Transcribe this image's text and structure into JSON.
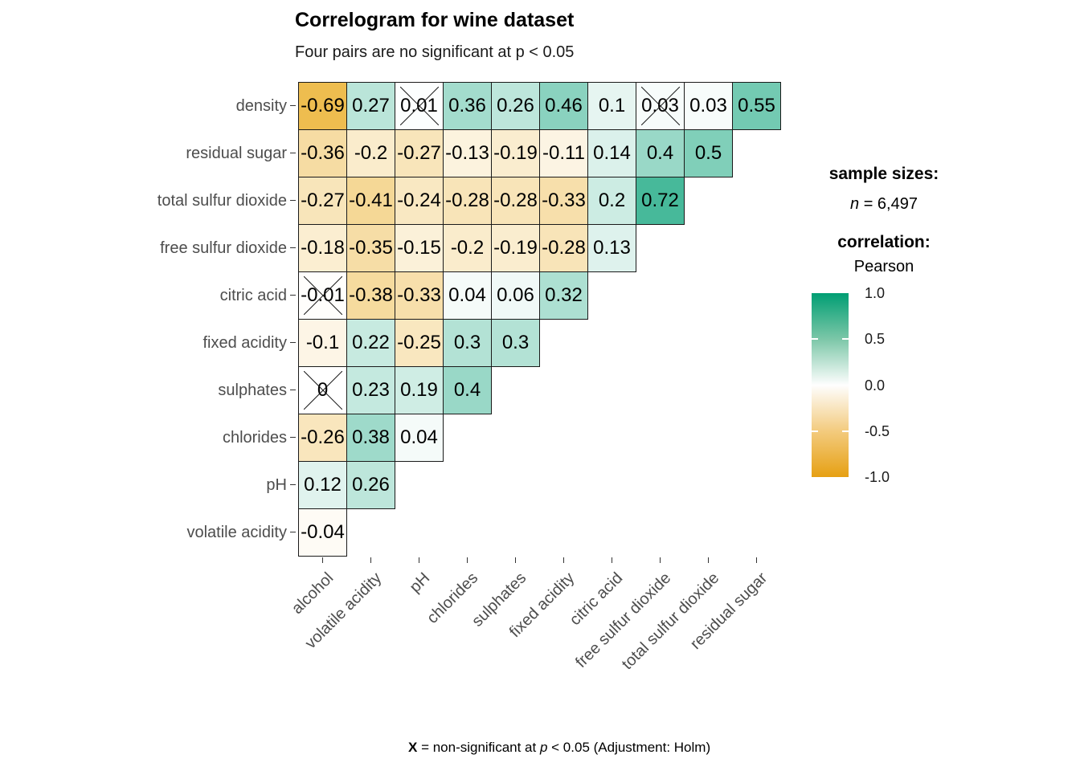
{
  "title": "Correlogram for wine dataset",
  "subtitle": "Four pairs are no significant at p < 0.05",
  "caption": {
    "symbol": "X",
    "middle": " = non-significant at ",
    "p_symbol": "p",
    "end": " < 0.05 (Adjustment: Holm)"
  },
  "legend": {
    "sample_sizes_label": "sample sizes:",
    "n_symbol": "n",
    "n_value": " = 6,497",
    "correlation_label": "correlation:",
    "correlation_method": "Pearson",
    "colorbar": {
      "ticks": [
        "1.0",
        "0.5",
        "0.0",
        "-0.5",
        "-1.0"
      ],
      "positive_color": "#009E73",
      "neutral_color": "#FFFFFF",
      "negative_color": "#E69F00"
    }
  },
  "chart_data": {
    "type": "heatmap",
    "title": "Correlogram for wine dataset",
    "subtitle": "Four pairs are no significant at p < 0.05",
    "caption": "X = non-significant at p < 0.05 (Adjustment: Holm)",
    "correlation_method": "Pearson",
    "sample_size": 6497,
    "colorscale": {
      "min": -1.0,
      "max": 1.0,
      "negative": "#E69F00",
      "neutral": "#FFFFFF",
      "positive": "#009E73"
    },
    "x_categories": [
      "alcohol",
      "volatile acidity",
      "pH",
      "chlorides",
      "sulphates",
      "fixed acidity",
      "citric acid",
      "free sulfur dioxide",
      "total sulfur dioxide",
      "residual sugar"
    ],
    "y_categories": [
      "density",
      "residual sugar",
      "total sulfur dioxide",
      "free sulfur dioxide",
      "citric acid",
      "fixed acidity",
      "sulphates",
      "chlorides",
      "pH",
      "volatile acidity"
    ],
    "rows": [
      {
        "label": "density",
        "values": [
          -0.69,
          0.27,
          0.01,
          0.36,
          0.26,
          0.46,
          0.1,
          0.03,
          0.03,
          0.55
        ],
        "display": [
          "-0.69",
          "0.27",
          "0.01",
          "0.36",
          "0.26",
          "0.46",
          "0.1",
          "0.03",
          "0.03",
          "0.55"
        ],
        "non_significant_cols": [
          2,
          7
        ]
      },
      {
        "label": "residual sugar",
        "values": [
          -0.36,
          -0.2,
          -0.27,
          -0.13,
          -0.19,
          -0.11,
          0.14,
          0.4,
          0.5
        ],
        "display": [
          "-0.36",
          "-0.2",
          "-0.27",
          "-0.13",
          "-0.19",
          "-0.11",
          "0.14",
          "0.4",
          "0.5"
        ],
        "non_significant_cols": []
      },
      {
        "label": "total sulfur dioxide",
        "values": [
          -0.27,
          -0.41,
          -0.24,
          -0.28,
          -0.28,
          -0.33,
          0.2,
          0.72
        ],
        "display": [
          "-0.27",
          "-0.41",
          "-0.24",
          "-0.28",
          "-0.28",
          "-0.33",
          "0.2",
          "0.72"
        ],
        "non_significant_cols": []
      },
      {
        "label": "free sulfur dioxide",
        "values": [
          -0.18,
          -0.35,
          -0.15,
          -0.2,
          -0.19,
          -0.28,
          0.13
        ],
        "display": [
          "-0.18",
          "-0.35",
          "-0.15",
          "-0.2",
          "-0.19",
          "-0.28",
          "0.13"
        ],
        "non_significant_cols": []
      },
      {
        "label": "citric acid",
        "values": [
          -0.01,
          -0.38,
          -0.33,
          0.04,
          0.06,
          0.32
        ],
        "display": [
          "-0.01",
          "-0.38",
          "-0.33",
          "0.04",
          "0.06",
          "0.32"
        ],
        "non_significant_cols": [
          0
        ]
      },
      {
        "label": "fixed acidity",
        "values": [
          -0.1,
          0.22,
          -0.25,
          0.3,
          0.3
        ],
        "display": [
          "-0.1",
          "0.22",
          "-0.25",
          "0.3",
          "0.3"
        ],
        "non_significant_cols": []
      },
      {
        "label": "sulphates",
        "values": [
          0,
          0.23,
          0.19,
          0.4
        ],
        "display": [
          "0",
          "0.23",
          "0.19",
          "0.4"
        ],
        "non_significant_cols": [
          0
        ]
      },
      {
        "label": "chlorides",
        "values": [
          -0.26,
          0.38,
          0.04
        ],
        "display": [
          "-0.26",
          "0.38",
          "0.04"
        ],
        "non_significant_cols": []
      },
      {
        "label": "pH",
        "values": [
          0.12,
          0.26
        ],
        "display": [
          "0.12",
          "0.26"
        ],
        "non_significant_cols": []
      },
      {
        "label": "volatile acidity",
        "values": [
          -0.04
        ],
        "display": [
          "-0.04"
        ],
        "non_significant_cols": []
      }
    ]
  }
}
